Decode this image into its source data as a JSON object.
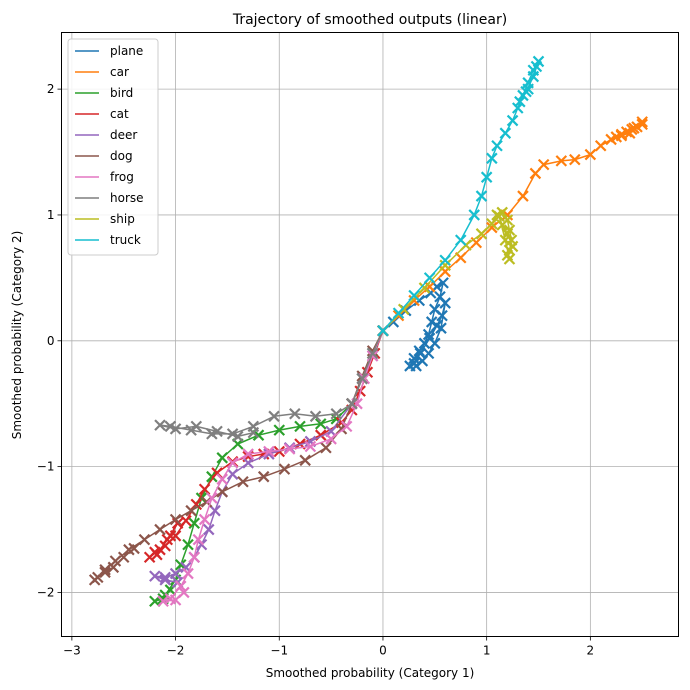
{
  "chart_data": {
    "type": "line",
    "title": "Trajectory of smoothed outputs (linear)",
    "xlabel": "Smoothed probability (Category 1)",
    "ylabel": "Smoothed probability (Category 2)",
    "xlim": [
      -3.1,
      2.85
    ],
    "ylim": [
      -2.35,
      2.45
    ],
    "xticks": [
      -3,
      -2,
      -1,
      0,
      1,
      2
    ],
    "yticks": [
      -2,
      -1,
      0,
      1,
      2
    ],
    "xtick_labels": [
      "−3",
      "−2",
      "−1",
      "0",
      "1",
      "2"
    ],
    "ytick_labels": [
      "−2",
      "−1",
      "0",
      "1",
      "2"
    ],
    "grid": true,
    "legend_position": "top-left",
    "marker": "x",
    "series": [
      {
        "name": "plane",
        "color": "#1f77b4",
        "points": [
          [
            0.0,
            0.08
          ],
          [
            0.1,
            0.15
          ],
          [
            0.22,
            0.24
          ],
          [
            0.35,
            0.32
          ],
          [
            0.46,
            0.38
          ],
          [
            0.52,
            0.43
          ],
          [
            0.58,
            0.46
          ],
          [
            0.55,
            0.35
          ],
          [
            0.5,
            0.25
          ],
          [
            0.47,
            0.15
          ],
          [
            0.44,
            0.05
          ],
          [
            0.4,
            -0.02
          ],
          [
            0.35,
            -0.08
          ],
          [
            0.3,
            -0.14
          ],
          [
            0.26,
            -0.2
          ],
          [
            0.3,
            -0.18
          ],
          [
            0.36,
            -0.1
          ],
          [
            0.45,
            0.02
          ],
          [
            0.52,
            0.12
          ],
          [
            0.57,
            0.2
          ],
          [
            0.6,
            0.3
          ],
          [
            0.56,
            0.1
          ],
          [
            0.5,
            -0.02
          ],
          [
            0.44,
            -0.1
          ],
          [
            0.38,
            -0.16
          ],
          [
            0.32,
            -0.2
          ]
        ]
      },
      {
        "name": "car",
        "color": "#ff7f0e",
        "points": [
          [
            0.0,
            0.08
          ],
          [
            0.15,
            0.2
          ],
          [
            0.3,
            0.32
          ],
          [
            0.45,
            0.43
          ],
          [
            0.6,
            0.55
          ],
          [
            0.75,
            0.66
          ],
          [
            0.9,
            0.78
          ],
          [
            1.05,
            0.9
          ],
          [
            1.2,
            1.0
          ],
          [
            1.35,
            1.15
          ],
          [
            1.47,
            1.33
          ],
          [
            1.55,
            1.4
          ],
          [
            1.72,
            1.43
          ],
          [
            1.85,
            1.44
          ],
          [
            2.0,
            1.48
          ],
          [
            2.1,
            1.55
          ],
          [
            2.2,
            1.6
          ],
          [
            2.3,
            1.64
          ],
          [
            2.4,
            1.68
          ],
          [
            2.5,
            1.72
          ],
          [
            2.45,
            1.7
          ],
          [
            2.35,
            1.66
          ],
          [
            2.25,
            1.62
          ],
          [
            2.38,
            1.65
          ],
          [
            2.5,
            1.74
          ],
          [
            2.42,
            1.69
          ],
          [
            2.3,
            1.63
          ]
        ]
      },
      {
        "name": "bird",
        "color": "#2ca02c",
        "points": [
          [
            0.0,
            0.08
          ],
          [
            -0.1,
            -0.1
          ],
          [
            -0.2,
            -0.3
          ],
          [
            -0.3,
            -0.5
          ],
          [
            -0.45,
            -0.62
          ],
          [
            -0.6,
            -0.66
          ],
          [
            -0.8,
            -0.68
          ],
          [
            -1.0,
            -0.71
          ],
          [
            -1.2,
            -0.75
          ],
          [
            -1.4,
            -0.82
          ],
          [
            -1.55,
            -0.93
          ],
          [
            -1.65,
            -1.08
          ],
          [
            -1.75,
            -1.25
          ],
          [
            -1.82,
            -1.45
          ],
          [
            -1.88,
            -1.62
          ],
          [
            -1.95,
            -1.78
          ],
          [
            -2.0,
            -1.9
          ],
          [
            -2.1,
            -2.02
          ],
          [
            -2.2,
            -2.07
          ],
          [
            -2.12,
            -2.05
          ],
          [
            -2.05,
            -1.98
          ]
        ]
      },
      {
        "name": "cat",
        "color": "#d62728",
        "points": [
          [
            0.0,
            0.08
          ],
          [
            -0.08,
            -0.1
          ],
          [
            -0.15,
            -0.25
          ],
          [
            -0.22,
            -0.4
          ],
          [
            -0.3,
            -0.55
          ],
          [
            -0.4,
            -0.65
          ],
          [
            -0.6,
            -0.75
          ],
          [
            -0.8,
            -0.82
          ],
          [
            -1.0,
            -0.88
          ],
          [
            -1.15,
            -0.9
          ],
          [
            -1.3,
            -0.92
          ],
          [
            -1.45,
            -0.96
          ],
          [
            -1.6,
            -1.05
          ],
          [
            -1.72,
            -1.18
          ],
          [
            -1.8,
            -1.3
          ],
          [
            -1.9,
            -1.43
          ],
          [
            -2.0,
            -1.55
          ],
          [
            -2.1,
            -1.63
          ],
          [
            -2.2,
            -1.68
          ],
          [
            -2.25,
            -1.72
          ],
          [
            -2.15,
            -1.66
          ],
          [
            -2.05,
            -1.55
          ],
          [
            -1.98,
            -1.45
          ],
          [
            -2.08,
            -1.58
          ],
          [
            -2.18,
            -1.7
          ]
        ]
      },
      {
        "name": "deer",
        "color": "#9467bd",
        "points": [
          [
            0.0,
            0.08
          ],
          [
            -0.1,
            -0.12
          ],
          [
            -0.2,
            -0.3
          ],
          [
            -0.3,
            -0.5
          ],
          [
            -0.5,
            -0.72
          ],
          [
            -0.7,
            -0.8
          ],
          [
            -0.9,
            -0.85
          ],
          [
            -1.1,
            -0.9
          ],
          [
            -1.3,
            -0.97
          ],
          [
            -1.45,
            -1.06
          ],
          [
            -1.55,
            -1.2
          ],
          [
            -1.62,
            -1.35
          ],
          [
            -1.68,
            -1.5
          ],
          [
            -1.75,
            -1.62
          ],
          [
            -1.82,
            -1.72
          ],
          [
            -1.9,
            -1.8
          ],
          [
            -2.0,
            -1.85
          ],
          [
            -2.1,
            -1.88
          ],
          [
            -2.2,
            -1.87
          ],
          [
            -2.1,
            -1.9
          ],
          [
            -1.98,
            -1.92
          ]
        ]
      },
      {
        "name": "dog",
        "color": "#8c564b",
        "points": [
          [
            0.0,
            0.08
          ],
          [
            -0.1,
            -0.08
          ],
          [
            -0.2,
            -0.28
          ],
          [
            -0.3,
            -0.5
          ],
          [
            -0.4,
            -0.7
          ],
          [
            -0.55,
            -0.85
          ],
          [
            -0.75,
            -0.95
          ],
          [
            -0.95,
            -1.02
          ],
          [
            -1.15,
            -1.08
          ],
          [
            -1.35,
            -1.12
          ],
          [
            -1.55,
            -1.2
          ],
          [
            -1.7,
            -1.28
          ],
          [
            -1.85,
            -1.35
          ],
          [
            -2.0,
            -1.42
          ],
          [
            -2.15,
            -1.5
          ],
          [
            -2.3,
            -1.58
          ],
          [
            -2.45,
            -1.66
          ],
          [
            -2.58,
            -1.75
          ],
          [
            -2.68,
            -1.82
          ],
          [
            -2.75,
            -1.88
          ],
          [
            -2.78,
            -1.9
          ],
          [
            -2.68,
            -1.84
          ],
          [
            -2.6,
            -1.8
          ],
          [
            -2.5,
            -1.72
          ],
          [
            -2.4,
            -1.65
          ]
        ]
      },
      {
        "name": "frog",
        "color": "#e377c2",
        "points": [
          [
            0.0,
            0.08
          ],
          [
            -0.1,
            -0.12
          ],
          [
            -0.18,
            -0.3
          ],
          [
            -0.25,
            -0.5
          ],
          [
            -0.35,
            -0.68
          ],
          [
            -0.5,
            -0.78
          ],
          [
            -0.7,
            -0.84
          ],
          [
            -0.9,
            -0.86
          ],
          [
            -1.1,
            -0.88
          ],
          [
            -1.3,
            -0.9
          ],
          [
            -1.45,
            -0.97
          ],
          [
            -1.55,
            -1.1
          ],
          [
            -1.65,
            -1.25
          ],
          [
            -1.72,
            -1.42
          ],
          [
            -1.78,
            -1.58
          ],
          [
            -1.82,
            -1.72
          ],
          [
            -1.88,
            -1.85
          ],
          [
            -1.95,
            -1.95
          ],
          [
            -2.05,
            -2.05
          ],
          [
            -2.12,
            -2.07
          ],
          [
            -2.0,
            -2.06
          ],
          [
            -1.92,
            -2.0
          ]
        ]
      },
      {
        "name": "horse",
        "color": "#7f7f7f",
        "points": [
          [
            0.0,
            0.08
          ],
          [
            -0.1,
            -0.1
          ],
          [
            -0.2,
            -0.3
          ],
          [
            -0.3,
            -0.5
          ],
          [
            -0.45,
            -0.58
          ],
          [
            -0.65,
            -0.6
          ],
          [
            -0.85,
            -0.58
          ],
          [
            -1.05,
            -0.6
          ],
          [
            -1.25,
            -0.68
          ],
          [
            -1.45,
            -0.74
          ],
          [
            -1.65,
            -0.74
          ],
          [
            -1.85,
            -0.71
          ],
          [
            -2.05,
            -0.68
          ],
          [
            -2.15,
            -0.67
          ],
          [
            -2.0,
            -0.7
          ],
          [
            -1.8,
            -0.68
          ],
          [
            -1.6,
            -0.72
          ],
          [
            -1.4,
            -0.76
          ],
          [
            -1.25,
            -0.73
          ]
        ]
      },
      {
        "name": "ship",
        "color": "#bcbd22",
        "points": [
          [
            0.0,
            0.08
          ],
          [
            0.2,
            0.25
          ],
          [
            0.4,
            0.42
          ],
          [
            0.6,
            0.6
          ],
          [
            0.8,
            0.76
          ],
          [
            0.95,
            0.85
          ],
          [
            1.05,
            0.93
          ],
          [
            1.1,
            1.0
          ],
          [
            1.15,
            1.02
          ],
          [
            1.2,
            0.96
          ],
          [
            1.22,
            0.88
          ],
          [
            1.24,
            0.8
          ],
          [
            1.22,
            0.72
          ],
          [
            1.2,
            0.68
          ],
          [
            1.25,
            0.75
          ],
          [
            1.2,
            0.85
          ],
          [
            1.15,
            0.92
          ],
          [
            1.12,
            0.99
          ],
          [
            1.18,
            0.8
          ],
          [
            1.22,
            0.65
          ]
        ]
      },
      {
        "name": "truck",
        "color": "#17becf",
        "points": [
          [
            0.0,
            0.08
          ],
          [
            0.15,
            0.22
          ],
          [
            0.3,
            0.36
          ],
          [
            0.45,
            0.5
          ],
          [
            0.6,
            0.64
          ],
          [
            0.75,
            0.8
          ],
          [
            0.88,
            1.0
          ],
          [
            0.95,
            1.15
          ],
          [
            1.0,
            1.3
          ],
          [
            1.05,
            1.45
          ],
          [
            1.1,
            1.55
          ],
          [
            1.18,
            1.65
          ],
          [
            1.25,
            1.75
          ],
          [
            1.3,
            1.85
          ],
          [
            1.35,
            1.95
          ],
          [
            1.4,
            2.05
          ],
          [
            1.45,
            2.15
          ],
          [
            1.5,
            2.22
          ],
          [
            1.45,
            2.1
          ],
          [
            1.38,
            1.98
          ],
          [
            1.32,
            1.9
          ],
          [
            1.4,
            2.0
          ],
          [
            1.48,
            2.18
          ]
        ]
      }
    ]
  }
}
